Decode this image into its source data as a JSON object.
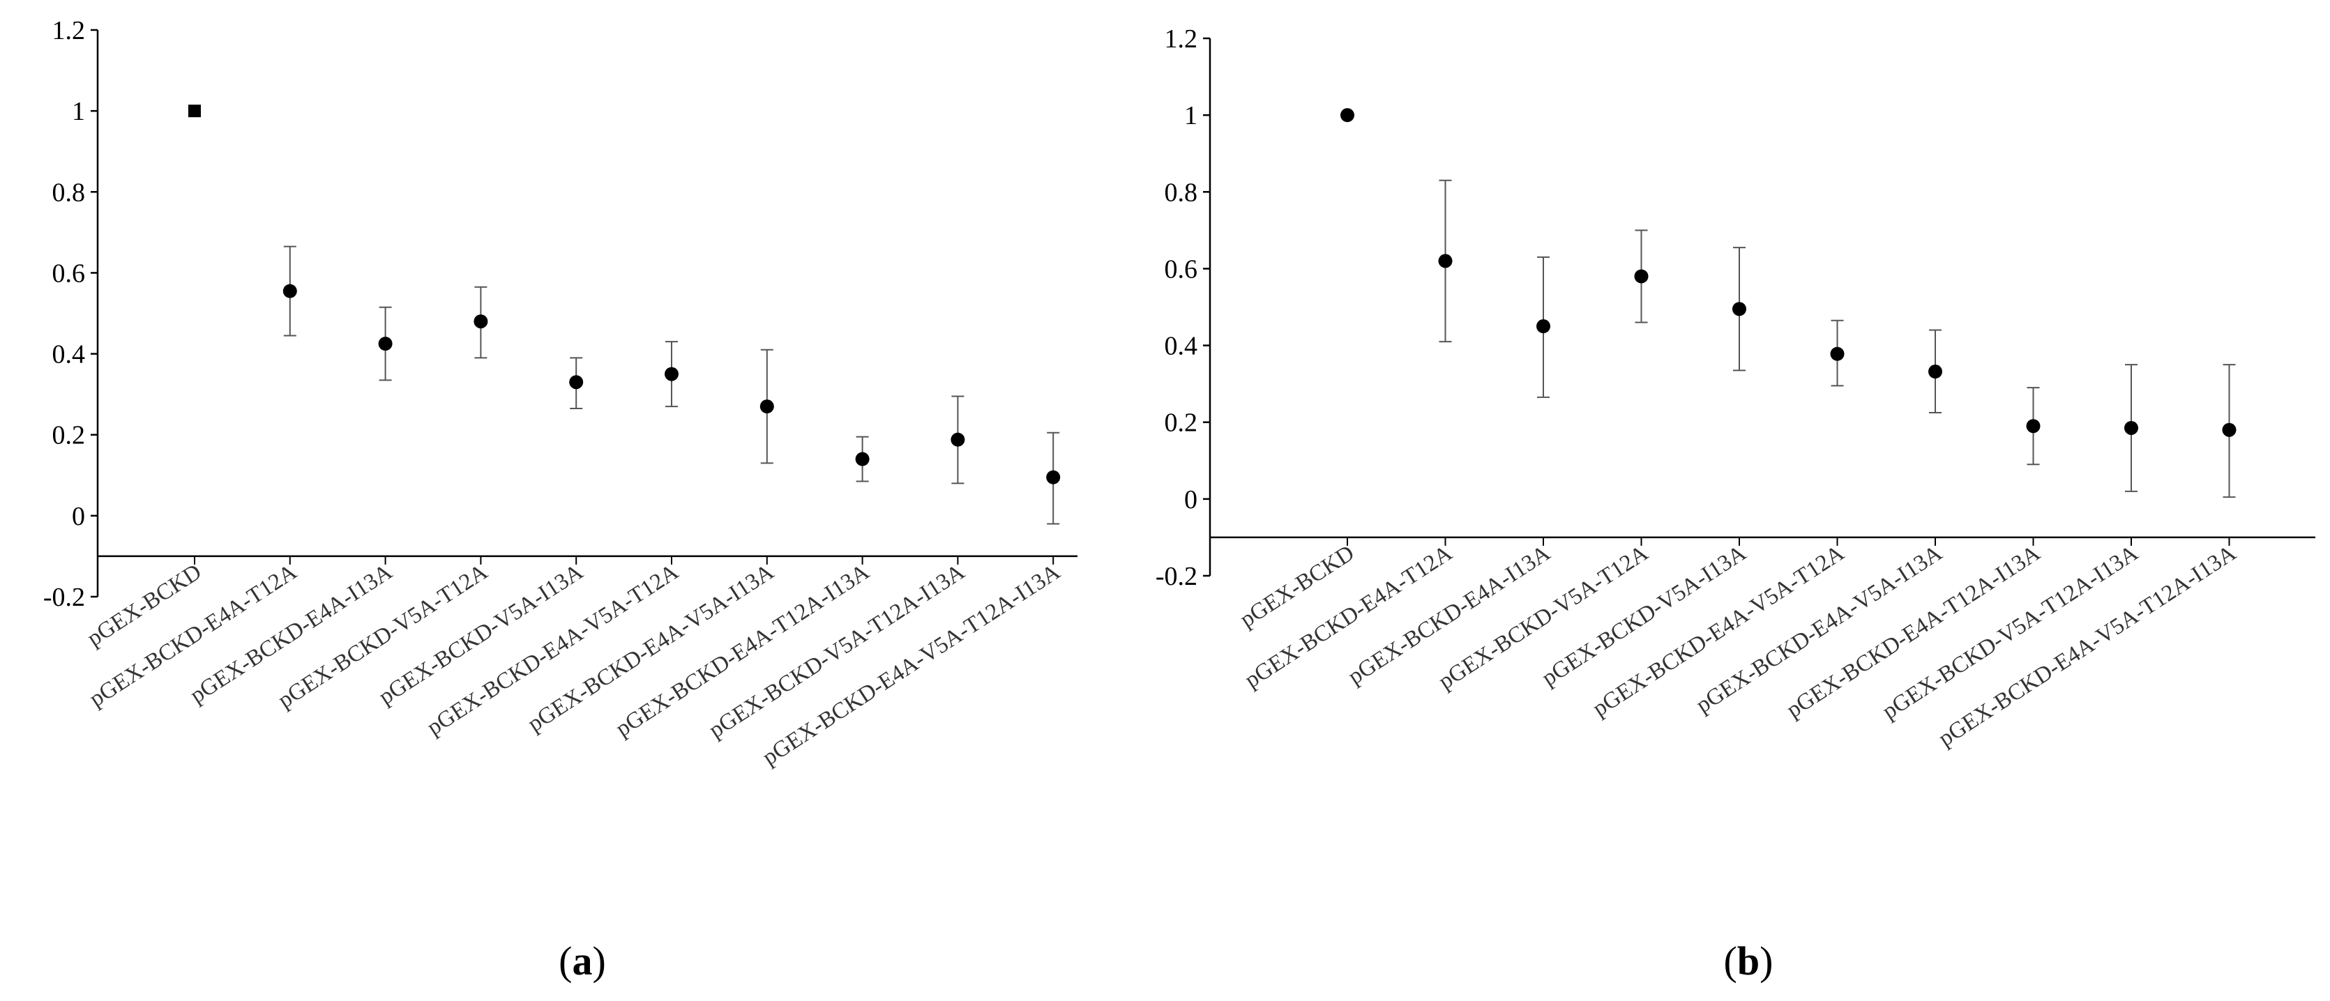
{
  "chart_data": [
    {
      "type": "scatter",
      "panel_label": "(a)",
      "panel_letter": "a",
      "categories": [
        "pGEX-BCKD",
        "pGEX-BCKD-E4A-T12A",
        "pGEX-BCKD-E4A-I13A",
        "pGEX-BCKD-V5A-T12A",
        "pGEX-BCKD-V5A-I13A",
        "pGEX-BCKD-E4A-V5A-T12A",
        "pGEX-BCKD-E4A-V5A-I13A",
        "pGEX-BCKD-E4A-T12A-I13A",
        "pGEX-BCKD-V5A-T12A-I13A",
        "pGEX-BCKD-E4A-V5A-T12A-I13A"
      ],
      "values": [
        1.0,
        0.555,
        0.425,
        0.48,
        0.33,
        0.35,
        0.27,
        0.14,
        0.188,
        0.095
      ],
      "err_low": [
        1.0,
        0.445,
        0.335,
        0.39,
        0.265,
        0.27,
        0.13,
        0.085,
        0.08,
        -0.02
      ],
      "err_high": [
        1.0,
        0.665,
        0.515,
        0.565,
        0.39,
        0.43,
        0.41,
        0.195,
        0.295,
        0.205
      ],
      "markers": [
        "square",
        "circle",
        "circle",
        "circle",
        "circle",
        "circle",
        "circle",
        "circle",
        "circle",
        "circle"
      ],
      "y_ticks": [
        "1.2",
        "1",
        "0.8",
        "0.6",
        "0.4",
        "0.2",
        "0",
        "-0.2"
      ],
      "ylim": [
        -0.2,
        1.2
      ],
      "x_axis_at": -0.1,
      "title": "",
      "xlabel": "",
      "ylabel": "",
      "grid": false
    },
    {
      "type": "scatter",
      "panel_label": "(b)",
      "panel_letter": "b",
      "categories": [
        "pGEX-BCKD",
        "pGEX-BCKD-E4A-T12A",
        "pGEX-BCKD-E4A-I13A",
        "pGEX-BCKD-V5A-T12A",
        "pGEX-BCKD-V5A-I13A",
        "pGEX-BCKD-E4A-V5A-T12A",
        "pGEX-BCKD-E4A-V5A-I13A",
        "pGEX-BCKD-E4A-T12A-I13A",
        "pGEX-BCKD-V5A-T12A-I13A",
        "pGEX-BCKD-E4A-V5A-T12A-I13A"
      ],
      "values": [
        1.0,
        0.62,
        0.45,
        0.58,
        0.495,
        0.378,
        0.332,
        0.19,
        0.185,
        0.18
      ],
      "err_low": [
        1.0,
        0.41,
        0.265,
        0.46,
        0.335,
        0.295,
        0.225,
        0.09,
        0.02,
        0.005
      ],
      "err_high": [
        1.0,
        0.83,
        0.63,
        0.7,
        0.655,
        0.465,
        0.44,
        0.29,
        0.35,
        0.35
      ],
      "markers": [
        "circle",
        "circle",
        "circle",
        "circle",
        "circle",
        "circle",
        "circle",
        "circle",
        "circle",
        "circle"
      ],
      "y_ticks": [
        "1.2",
        "1",
        "0.8",
        "0.6",
        "0.4",
        "0.2",
        "0",
        "-0.2"
      ],
      "ylim": [
        -0.2,
        1.2
      ],
      "x_axis_at": -0.1,
      "title": "",
      "xlabel": "",
      "ylabel": "",
      "grid": false
    }
  ]
}
